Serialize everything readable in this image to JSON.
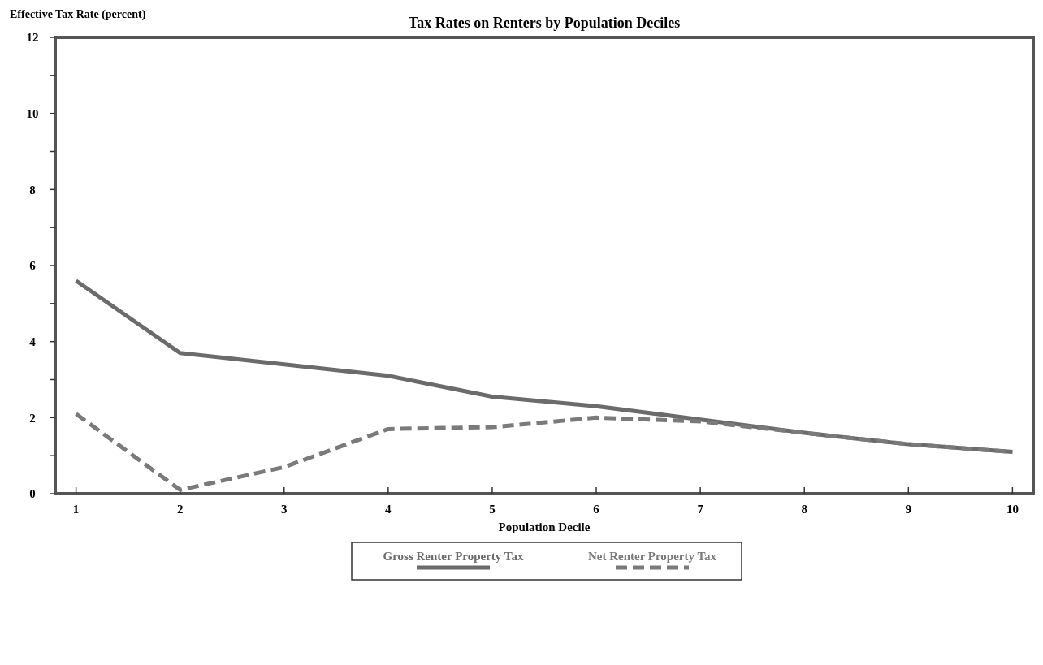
{
  "chart_data": {
    "type": "line",
    "title": "Tax Rates on Renters by Population Deciles",
    "ylabel": "Effective Tax Rate (percent)",
    "xlabel": "Population Decile",
    "x": [
      1,
      2,
      3,
      4,
      5,
      6,
      7,
      8,
      9,
      10
    ],
    "xlim": [
      0.8,
      10.2
    ],
    "xticks": [
      1,
      2,
      3,
      4,
      5,
      6,
      7,
      8,
      9,
      10
    ],
    "ylim": [
      0,
      12
    ],
    "yticks": [
      0,
      {
        "value": 1,
        "label": null
      },
      2,
      {
        "value": 3,
        "label": null
      },
      4,
      {
        "value": 5,
        "label": null
      },
      6,
      {
        "value": 7,
        "label": null
      },
      8,
      {
        "value": 9,
        "label": null
      },
      10,
      {
        "value": 11,
        "label": null
      },
      12
    ],
    "grid": false,
    "legend": "bottom",
    "series": [
      {
        "name": "Gross Renter Property Tax",
        "color": "#6b6b6b",
        "line_style": "solid",
        "values": [
          5.6,
          3.7,
          3.4,
          3.1,
          2.55,
          2.3,
          1.95,
          1.6,
          1.3,
          1.1
        ]
      },
      {
        "name": "Net Renter Property Tax",
        "color": "#7a7a7a",
        "line_style": "dashed",
        "values": [
          2.1,
          0.1,
          0.7,
          1.7,
          1.75,
          2.0,
          1.9,
          1.6,
          1.3,
          1.1
        ]
      }
    ]
  }
}
